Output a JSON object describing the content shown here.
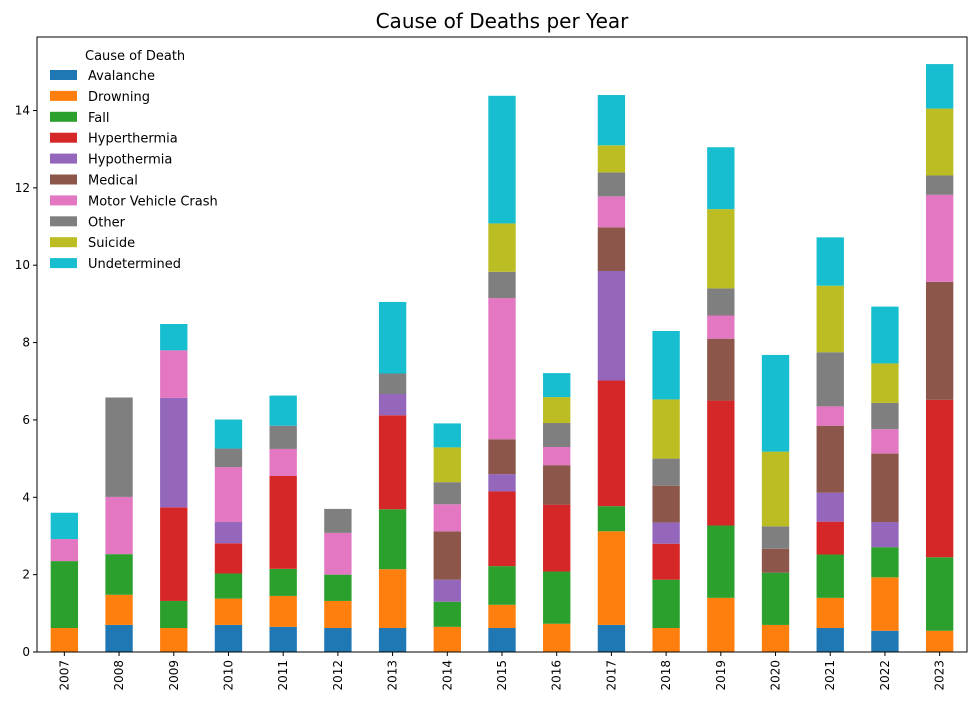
{
  "chart_data": {
    "type": "bar",
    "stacked": true,
    "title": "Cause of Deaths per Year",
    "xlabel": "",
    "ylabel": "",
    "ylim": [
      0,
      15.9
    ],
    "yticks": [
      0,
      2,
      4,
      6,
      8,
      10,
      12,
      14
    ],
    "grid": false,
    "legend": {
      "title": "Cause of Death",
      "placement": "upper-left"
    },
    "categories": [
      "2007",
      "2008",
      "2009",
      "2010",
      "2011",
      "2012",
      "2013",
      "2014",
      "2015",
      "2016",
      "2017",
      "2018",
      "2019",
      "2020",
      "2021",
      "2022",
      "2023"
    ],
    "series": [
      {
        "name": "Avalanche",
        "color": "#1f77b4",
        "values": [
          0,
          0.7,
          0,
          0.7,
          0.65,
          0.62,
          0.62,
          0,
          0.62,
          0,
          0.7,
          0,
          0,
          0,
          0.62,
          0.55,
          0
        ]
      },
      {
        "name": "Drowning",
        "color": "#ff7f0e",
        "values": [
          0.62,
          0.78,
          0.62,
          0.68,
          0.8,
          0.7,
          1.52,
          0.65,
          0.6,
          0.73,
          2.42,
          0.62,
          1.4,
          0.7,
          0.78,
          1.38,
          0.55
        ]
      },
      {
        "name": "Fall",
        "color": "#2ca02c",
        "values": [
          1.73,
          1.05,
          0.7,
          0.65,
          0.7,
          0.68,
          1.55,
          0.65,
          1.0,
          1.35,
          0.65,
          1.25,
          1.87,
          1.35,
          1.12,
          0.78,
          1.9
        ]
      },
      {
        "name": "Hyperthermia",
        "color": "#d62728",
        "values": [
          0,
          0,
          2.42,
          0.78,
          2.4,
          0,
          2.43,
          0,
          1.93,
          1.73,
          3.25,
          0.93,
          3.23,
          0,
          0.85,
          0,
          4.07
        ]
      },
      {
        "name": "Hypothermia",
        "color": "#9467bd",
        "values": [
          0,
          0,
          2.83,
          0.55,
          0,
          0,
          0.55,
          0.57,
          0.45,
          0,
          2.83,
          0.55,
          0,
          0,
          0.75,
          0.65,
          0
        ]
      },
      {
        "name": "Medical",
        "color": "#8c564b",
        "values": [
          0,
          0,
          0,
          0,
          0,
          0,
          0,
          1.25,
          0.9,
          1.02,
          1.13,
          0.95,
          1.6,
          0.62,
          1.73,
          1.77,
          3.05
        ]
      },
      {
        "name": "Motor Vehicle Crash",
        "color": "#e377c2",
        "values": [
          0.57,
          1.48,
          1.23,
          1.42,
          0.7,
          1.08,
          0,
          0.7,
          3.65,
          0.47,
          0.8,
          0,
          0.6,
          0,
          0.5,
          0.63,
          2.25
        ]
      },
      {
        "name": "Other",
        "color": "#7f7f7f",
        "values": [
          0,
          2.57,
          0,
          0.48,
          0.6,
          0.62,
          0.53,
          0.57,
          0.68,
          0.62,
          0.62,
          0.7,
          0.7,
          0.58,
          1.4,
          0.68,
          0.5
        ]
      },
      {
        "name": "Suicide",
        "color": "#bcbd22",
        "values": [
          0,
          0,
          0,
          0,
          0,
          0,
          0,
          0.9,
          1.25,
          0.67,
          0.7,
          1.53,
          2.05,
          1.93,
          1.72,
          1.02,
          1.73
        ]
      },
      {
        "name": "Undetermined",
        "color": "#17becf",
        "values": [
          0.68,
          0,
          0.68,
          0.75,
          0.78,
          0,
          1.85,
          0.62,
          3.3,
          0.62,
          1.3,
          1.77,
          1.6,
          2.5,
          1.25,
          1.47,
          1.15
        ]
      }
    ]
  }
}
